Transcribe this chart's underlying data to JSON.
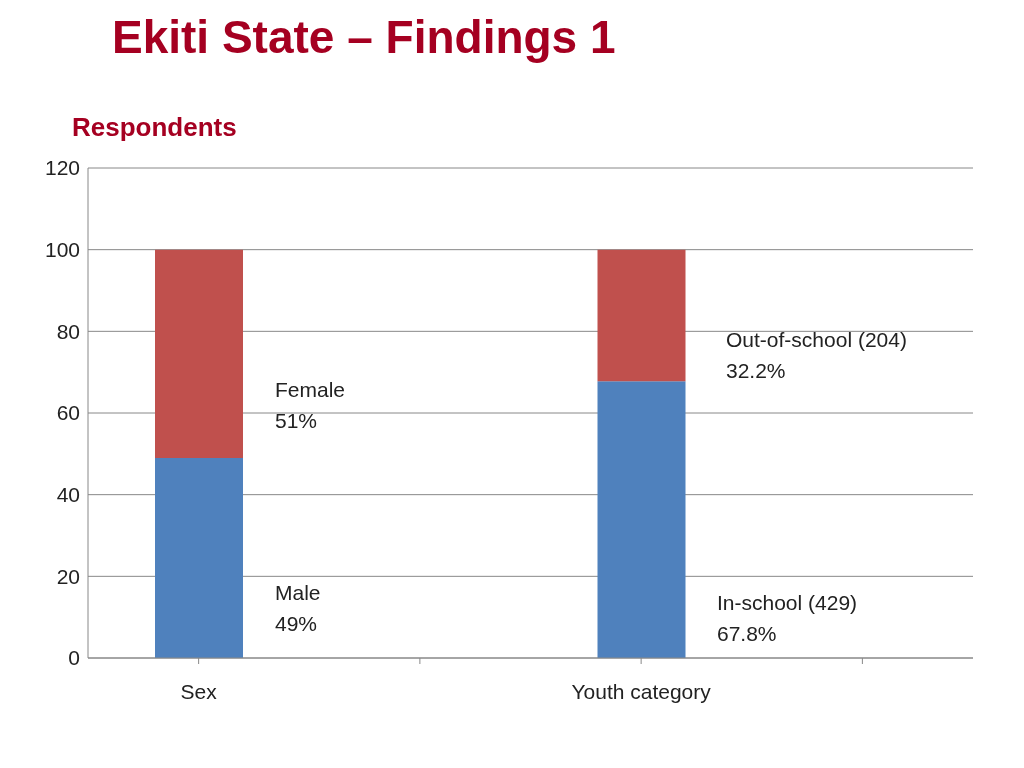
{
  "chart_data": {
    "type": "bar",
    "title": "Ekiti State – Findings 1",
    "subtitle": "Respondents",
    "stacked": true,
    "categories": [
      "Sex",
      null,
      "Youth category",
      null
    ],
    "series": [
      {
        "color": "#4f81bd",
        "values": [
          49,
          null,
          67.8,
          null
        ]
      },
      {
        "color": "#c0504d",
        "values": [
          51,
          null,
          32.2,
          null
        ]
      }
    ],
    "annotations": [
      "Female\n51%",
      "Male\n49%",
      "Out-of-school (204)\n32.2%",
      "In-school (429)\n67.8%"
    ],
    "ylim": [
      0,
      120
    ],
    "yticks": [
      0,
      20,
      40,
      60,
      80,
      100,
      120
    ],
    "grid": "y",
    "legend": false
  }
}
